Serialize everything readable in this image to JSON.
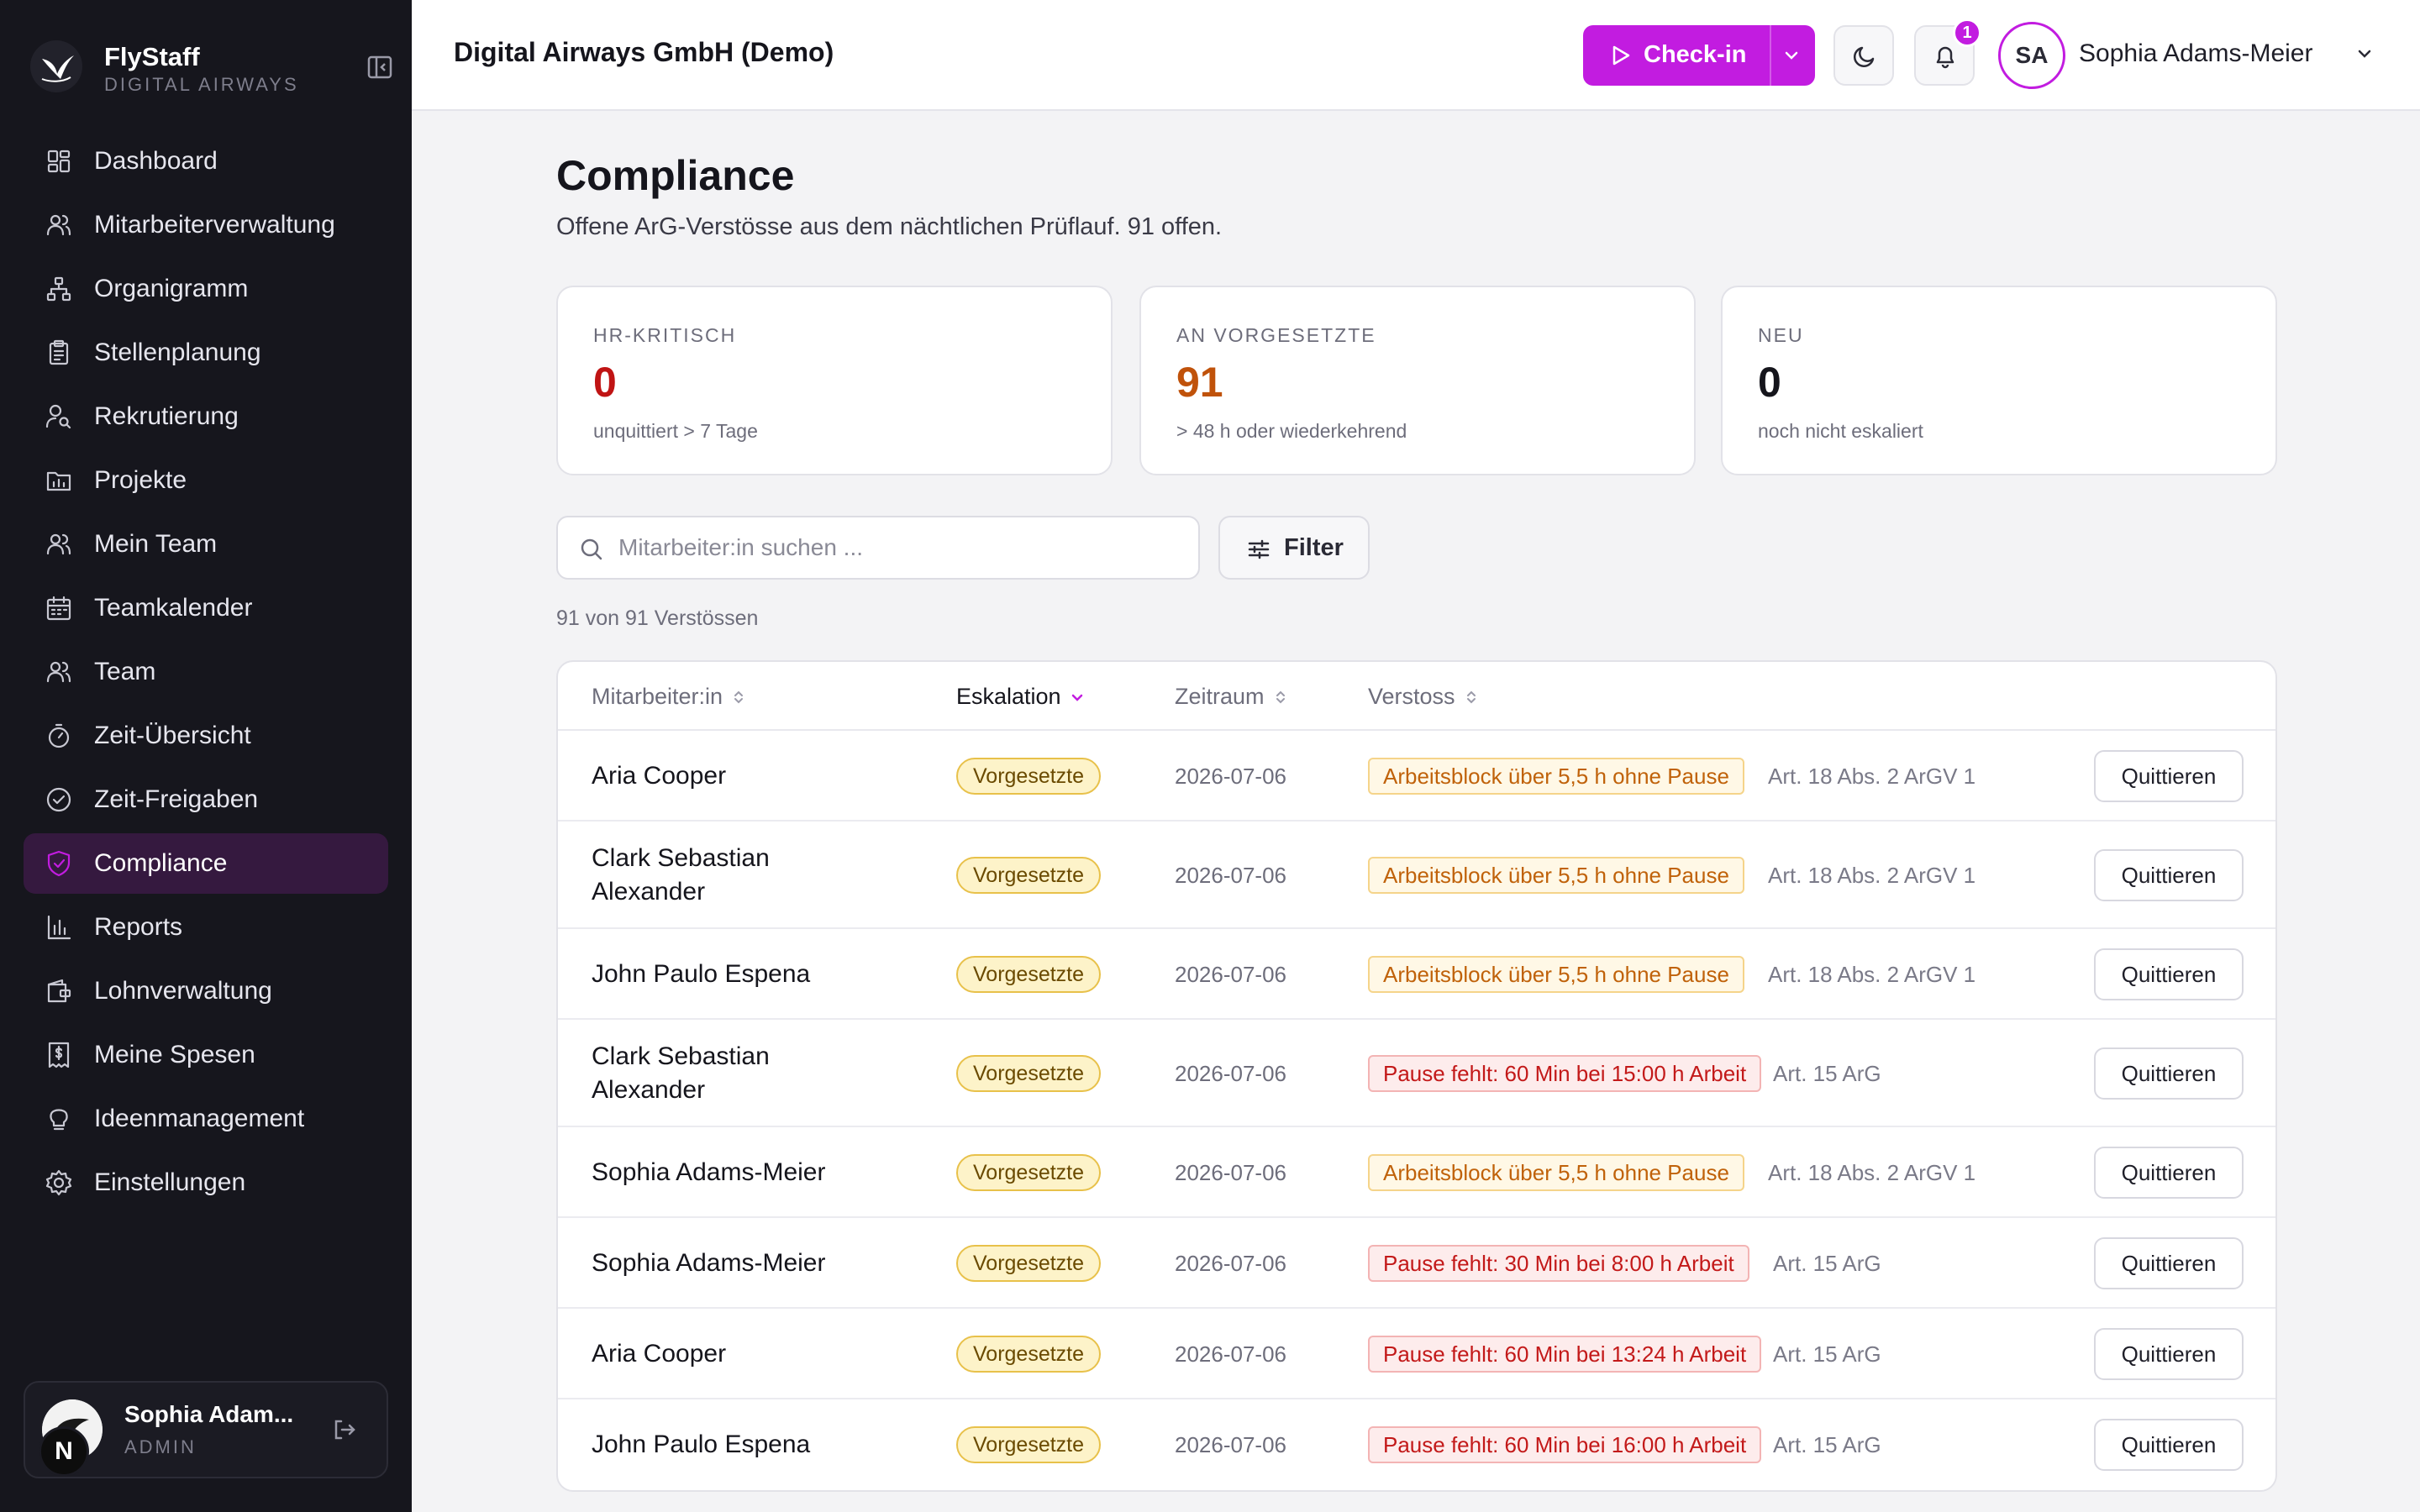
{
  "brand": {
    "name": "FlyStaff",
    "subtitle": "DIGITAL AIRWAYS"
  },
  "sidebar": {
    "items": [
      {
        "label": "Dashboard",
        "icon": "dashboard-icon",
        "active": false
      },
      {
        "label": "Mitarbeiterverwaltung",
        "icon": "users-icon",
        "active": false
      },
      {
        "label": "Organigramm",
        "icon": "org-chart-icon",
        "active": false
      },
      {
        "label": "Stellenplanung",
        "icon": "clipboard-icon",
        "active": false
      },
      {
        "label": "Rekrutierung",
        "icon": "user-search-icon",
        "active": false
      },
      {
        "label": "Projekte",
        "icon": "folder-chart-icon",
        "active": false
      },
      {
        "label": "Mein Team",
        "icon": "users-icon",
        "active": false
      },
      {
        "label": "Teamkalender",
        "icon": "calendar-icon",
        "active": false
      },
      {
        "label": "Team",
        "icon": "users-icon",
        "active": false
      },
      {
        "label": "Zeit-Übersicht",
        "icon": "timer-icon",
        "active": false
      },
      {
        "label": "Zeit-Freigaben",
        "icon": "check-circle-icon",
        "active": false
      },
      {
        "label": "Compliance",
        "icon": "shield-check-icon",
        "active": true
      },
      {
        "label": "Reports",
        "icon": "bar-chart-icon",
        "active": false
      },
      {
        "label": "Lohnverwaltung",
        "icon": "wallet-icon",
        "active": false
      },
      {
        "label": "Meine Spesen",
        "icon": "receipt-icon",
        "active": false
      },
      {
        "label": "Ideenmanagement",
        "icon": "lightbulb-icon",
        "active": false
      },
      {
        "label": "Einstellungen",
        "icon": "gear-icon",
        "active": false
      }
    ],
    "user": {
      "name": "Sophia Adam...",
      "role": "ADMIN",
      "initial": "N"
    }
  },
  "header": {
    "company": "Digital Airways GmbH (Demo)",
    "checkin_label": "Check-in",
    "notification_count": "1",
    "avatar_initials": "SA",
    "user_name": "Sophia Adams-Meier"
  },
  "page": {
    "title": "Compliance",
    "subtitle": "Offene ArG-Verstösse aus dem nächtlichen Prüflauf. 91 offen."
  },
  "stats": [
    {
      "label": "HR-KRITISCH",
      "value": "0",
      "note": "unquittiert > 7 Tage",
      "color": "#c01414"
    },
    {
      "label": "AN VORGESETZTE",
      "value": "91",
      "note": "> 48 h oder wiederkehrend",
      "color": "#c0520a"
    },
    {
      "label": "NEU",
      "value": "0",
      "note": "noch nicht eskaliert",
      "color": "#15151c"
    }
  ],
  "search": {
    "placeholder": "Mitarbeiter:in suchen ...",
    "value": ""
  },
  "filter_label": "Filter",
  "result_count": "91 von 91 Verstössen",
  "table": {
    "columns": [
      "Mitarbeiter:in",
      "Eskalation",
      "Zeitraum",
      "Verstoss"
    ],
    "sorted_column": "Eskalation",
    "rows": [
      {
        "name": "Aria Cooper",
        "escalation": "Vorgesetzte",
        "date": "2026-07-06",
        "violation": "Arbeitsblock über 5,5 h ohne Pause",
        "severity": "warn",
        "law": "Art. 18 Abs. 2 ArGV 1",
        "action": "Quittieren"
      },
      {
        "name": "Clark Sebastian Alexander",
        "escalation": "Vorgesetzte",
        "date": "2026-07-06",
        "violation": "Arbeitsblock über 5,5 h ohne Pause",
        "severity": "warn",
        "law": "Art. 18 Abs. 2 ArGV 1",
        "action": "Quittieren"
      },
      {
        "name": "John Paulo Espena",
        "escalation": "Vorgesetzte",
        "date": "2026-07-06",
        "violation": "Arbeitsblock über 5,5 h ohne Pause",
        "severity": "warn",
        "law": "Art. 18 Abs. 2 ArGV 1",
        "action": "Quittieren"
      },
      {
        "name": "Clark Sebastian Alexander",
        "escalation": "Vorgesetzte",
        "date": "2026-07-06",
        "violation": "Pause fehlt: 60 Min bei 15:00 h Arbeit",
        "severity": "err",
        "law": "Art. 15 ArG",
        "action": "Quittieren"
      },
      {
        "name": "Sophia Adams-Meier",
        "escalation": "Vorgesetzte",
        "date": "2026-07-06",
        "violation": "Arbeitsblock über 5,5 h ohne Pause",
        "severity": "warn",
        "law": "Art. 18 Abs. 2 ArGV 1",
        "action": "Quittieren"
      },
      {
        "name": "Sophia Adams-Meier",
        "escalation": "Vorgesetzte",
        "date": "2026-07-06",
        "violation": "Pause fehlt: 30 Min bei 8:00 h Arbeit",
        "severity": "err",
        "law": "Art. 15 ArG",
        "action": "Quittieren"
      },
      {
        "name": "Aria Cooper",
        "escalation": "Vorgesetzte",
        "date": "2026-07-06",
        "violation": "Pause fehlt: 60 Min bei 13:24 h Arbeit",
        "severity": "err",
        "law": "Art. 15 ArG",
        "action": "Quittieren"
      },
      {
        "name": "John Paulo Espena",
        "escalation": "Vorgesetzte",
        "date": "2026-07-06",
        "violation": "Pause fehlt: 60 Min bei 16:00 h Arbeit",
        "severity": "err",
        "law": "Art. 15 ArG",
        "action": "Quittieren"
      }
    ]
  },
  "colors": {
    "accent": "#c21ce0",
    "sidebar_bg": "#16161d",
    "active_item_bg": "#35193f"
  }
}
